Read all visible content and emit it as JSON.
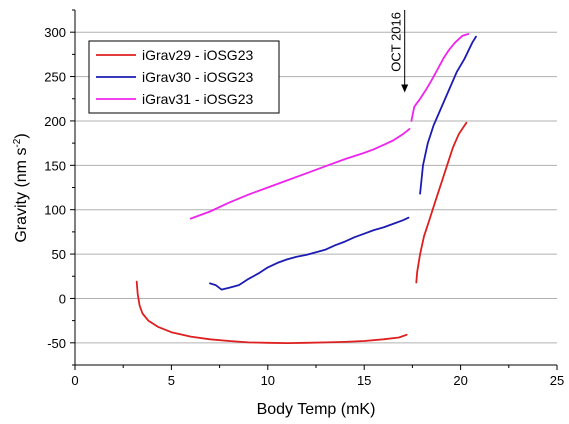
{
  "chart_data": {
    "type": "line",
    "xlabel": "Body Temp (mK)",
    "ylabel_main": "Gravity (nm s",
    "ylabel_sup": "-2",
    "ylabel_close": ")",
    "xlim": [
      0,
      25
    ],
    "ylim": [
      -75,
      325
    ],
    "xticks": [
      0,
      5,
      10,
      15,
      20,
      25
    ],
    "yticks": [
      -50,
      0,
      50,
      100,
      150,
      200,
      250,
      300
    ],
    "grid": "horizontal",
    "legend_position": "top-left",
    "annotation": {
      "text": "OCT 2016",
      "x": 17.1,
      "y_from": 325,
      "y_to": 232
    },
    "series": [
      {
        "name": "iGrav29 - iOSG23",
        "color": "#dd1f1f",
        "segments": [
          [
            [
              3.2,
              19
            ],
            [
              3.25,
              5
            ],
            [
              3.35,
              -8
            ],
            [
              3.5,
              -17
            ],
            [
              3.8,
              -25
            ],
            [
              4.3,
              -32
            ],
            [
              5,
              -38
            ],
            [
              6,
              -43
            ],
            [
              7,
              -46
            ],
            [
              8,
              -48
            ],
            [
              9,
              -49.5
            ],
            [
              10,
              -50
            ],
            [
              11,
              -50.3
            ],
            [
              12,
              -50
            ],
            [
              13,
              -49.5
            ],
            [
              14,
              -49
            ],
            [
              15,
              -48
            ],
            [
              16,
              -46
            ],
            [
              16.8,
              -44
            ],
            [
              17.2,
              -41
            ]
          ],
          [
            [
              17.7,
              18
            ],
            [
              17.75,
              30
            ],
            [
              17.9,
              50
            ],
            [
              18.1,
              70
            ],
            [
              18.4,
              90
            ],
            [
              18.7,
              110
            ],
            [
              19.0,
              130
            ],
            [
              19.3,
              150
            ],
            [
              19.6,
              170
            ],
            [
              19.9,
              185
            ],
            [
              20.3,
              198
            ]
          ]
        ]
      },
      {
        "name": "iGrav30 - iOSG23",
        "color": "#1c1cb5",
        "segments": [
          [
            [
              7.0,
              17
            ],
            [
              7.3,
              15
            ],
            [
              7.6,
              10
            ],
            [
              8.0,
              12
            ],
            [
              8.5,
              15
            ],
            [
              9.0,
              22
            ],
            [
              9.5,
              28
            ],
            [
              10,
              35
            ],
            [
              10.5,
              40
            ],
            [
              11,
              44
            ],
            [
              11.5,
              47
            ],
            [
              12,
              49
            ],
            [
              12.5,
              52
            ],
            [
              13,
              55
            ],
            [
              13.5,
              60
            ],
            [
              14,
              64
            ],
            [
              14.5,
              69
            ],
            [
              15,
              73
            ],
            [
              15.5,
              77
            ],
            [
              16,
              80
            ],
            [
              16.5,
              84
            ],
            [
              17.0,
              88
            ],
            [
              17.3,
              91
            ]
          ],
          [
            [
              17.9,
              118
            ],
            [
              18.05,
              150
            ],
            [
              18.3,
              175
            ],
            [
              18.6,
              195
            ],
            [
              19.0,
              215
            ],
            [
              19.4,
              235
            ],
            [
              19.8,
              255
            ],
            [
              20.2,
              270
            ],
            [
              20.6,
              288
            ],
            [
              20.8,
              295
            ]
          ]
        ]
      },
      {
        "name": "iGrav31 - iOSG23",
        "color": "#ee24ee",
        "segments": [
          [
            [
              6.0,
              90
            ],
            [
              7,
              98
            ],
            [
              8,
              108
            ],
            [
              9,
              117
            ],
            [
              10,
              125
            ],
            [
              11,
              133
            ],
            [
              12,
              141
            ],
            [
              13,
              149
            ],
            [
              14,
              157
            ],
            [
              15,
              164
            ],
            [
              15.5,
              168
            ],
            [
              16,
              173
            ],
            [
              16.5,
              178
            ],
            [
              17.0,
              185
            ],
            [
              17.35,
              191
            ]
          ],
          [
            [
              17.45,
              200
            ],
            [
              17.6,
              216
            ],
            [
              17.9,
              225
            ],
            [
              18.2,
              235
            ],
            [
              18.5,
              246
            ],
            [
              18.8,
              258
            ],
            [
              19.1,
              270
            ],
            [
              19.4,
              280
            ],
            [
              19.7,
              288
            ],
            [
              20.1,
              296
            ],
            [
              20.4,
              298
            ]
          ]
        ]
      }
    ]
  }
}
